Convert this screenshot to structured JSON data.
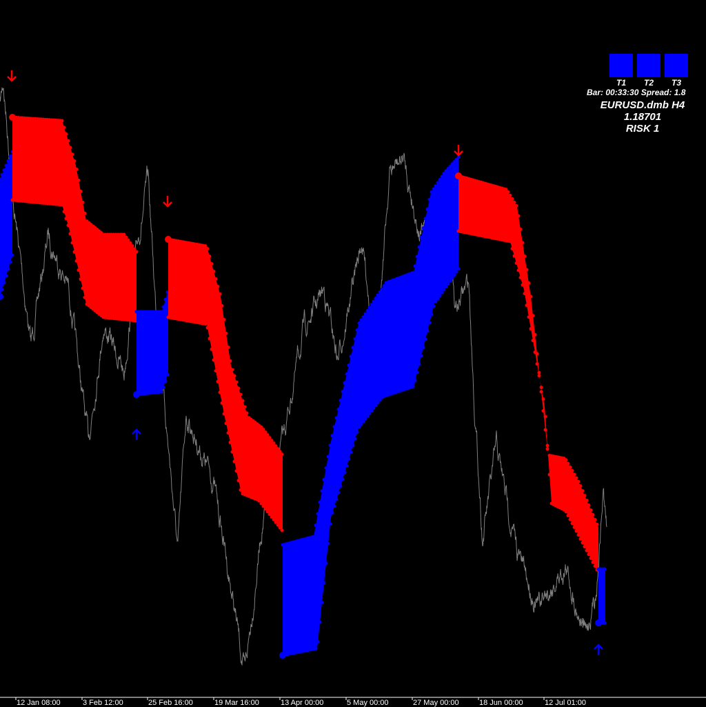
{
  "chart_data": {
    "type": "line",
    "title": "",
    "xlabel": "",
    "ylabel": "",
    "symbol": "EURUSD.dmb",
    "timeframe": "H4",
    "x_ticks": [
      {
        "x": 23,
        "label": "12 Jan 08:00"
      },
      {
        "x": 119,
        "label": "3 Feb 12:00"
      },
      {
        "x": 214,
        "label": "25 Feb 16:00"
      },
      {
        "x": 310,
        "label": "19 Mar 16:00"
      },
      {
        "x": 406,
        "label": "13 Apr 00:00"
      },
      {
        "x": 502,
        "label": "5 May 00:00"
      },
      {
        "x": 598,
        "label": "27 May 00:00"
      },
      {
        "x": 694,
        "label": "18 Jun 00:00"
      },
      {
        "x": 789,
        "label": "12 Jul 01:00"
      }
    ],
    "price_path": [
      [
        0,
        85
      ],
      [
        5,
        88
      ],
      [
        20,
        70
      ],
      [
        45,
        50
      ],
      [
        70,
        66
      ],
      [
        100,
        58
      ],
      [
        128,
        36
      ],
      [
        150,
        53
      ],
      [
        180,
        46
      ],
      [
        200,
        65
      ],
      [
        215,
        74
      ],
      [
        225,
        57
      ],
      [
        258,
        20
      ],
      [
        270,
        40
      ],
      [
        310,
        30
      ],
      [
        330,
        18
      ],
      [
        355,
        2
      ],
      [
        380,
        24
      ],
      [
        410,
        36
      ],
      [
        440,
        52
      ],
      [
        470,
        58
      ],
      [
        490,
        48
      ],
      [
        525,
        65
      ],
      [
        545,
        50
      ],
      [
        565,
        75
      ],
      [
        585,
        77
      ],
      [
        610,
        66
      ],
      [
        640,
        70
      ],
      [
        650,
        71
      ],
      [
        660,
        55
      ],
      [
        680,
        59
      ],
      [
        688,
        42
      ],
      [
        700,
        22
      ],
      [
        720,
        35
      ],
      [
        750,
        20
      ],
      [
        780,
        12
      ],
      [
        820,
        18
      ],
      [
        850,
        8
      ],
      [
        865,
        15
      ],
      [
        875,
        29
      ],
      [
        880,
        23
      ]
    ],
    "bands": [
      {
        "trend": "up",
        "top": [
          [
            0,
            74
          ],
          [
            18,
            78
          ]
        ],
        "bottom": [
          [
            0,
            57
          ],
          [
            18,
            63
          ]
        ]
      },
      {
        "trend": "down",
        "top": [
          [
            18,
            83
          ],
          [
            90,
            82.5
          ],
          [
            110,
            76
          ],
          [
            125,
            68
          ],
          [
            150,
            66
          ],
          [
            180,
            66
          ],
          [
            198,
            63.5
          ]
        ],
        "bottom": [
          [
            18,
            71
          ],
          [
            90,
            70.3
          ],
          [
            100,
            67
          ],
          [
            125,
            56
          ],
          [
            150,
            54
          ],
          [
            198,
            53.5
          ]
        ]
      },
      {
        "trend": "up",
        "top": [
          [
            198,
            54.8
          ],
          [
            235,
            54.8
          ],
          [
            244,
            58
          ]
        ],
        "bottom": [
          [
            198,
            42.8
          ],
          [
            235,
            43.2
          ],
          [
            244,
            46
          ]
        ]
      },
      {
        "trend": "down",
        "top": [
          [
            244,
            65.3
          ],
          [
            300,
            64.3
          ],
          [
            320,
            57
          ],
          [
            335,
            47
          ],
          [
            360,
            39.5
          ],
          [
            380,
            38
          ],
          [
            410,
            34
          ]
        ],
        "bottom": [
          [
            244,
            54
          ],
          [
            300,
            53
          ],
          [
            325,
            40
          ],
          [
            350,
            28.5
          ],
          [
            375,
            27.5
          ],
          [
            410,
            23
          ]
        ]
      },
      {
        "trend": "up",
        "top": [
          [
            410,
            21
          ],
          [
            455,
            22.2
          ],
          [
            480,
            36
          ],
          [
            520,
            53
          ],
          [
            560,
            59
          ],
          [
            600,
            60.5
          ],
          [
            625,
            72
          ],
          [
            645,
            75
          ],
          [
            665,
            77.2
          ]
        ],
        "bottom": [
          [
            410,
            5
          ],
          [
            460,
            6
          ],
          [
            480,
            25
          ],
          [
            520,
            38
          ],
          [
            555,
            42.5
          ],
          [
            600,
            44
          ],
          [
            630,
            56
          ],
          [
            665,
            61
          ]
        ]
      },
      {
        "trend": "down",
        "top": [
          [
            665,
            74.5
          ],
          [
            735,
            72.5
          ],
          [
            750,
            70
          ],
          [
            770,
            57
          ],
          [
            795,
            34
          ],
          [
            820,
            33.5
          ],
          [
            840,
            30
          ],
          [
            868,
            23.5
          ]
        ],
        "bottom": [
          [
            665,
            66.5
          ],
          [
            740,
            65
          ],
          [
            760,
            58
          ],
          [
            790,
            41
          ],
          [
            800,
            27
          ],
          [
            820,
            26
          ],
          [
            868,
            17
          ]
        ]
      },
      {
        "trend": "up",
        "top": [
          [
            868,
            17.5
          ],
          [
            878,
            17.5
          ]
        ],
        "bottom": [
          [
            868,
            9.7
          ],
          [
            878,
            9.7
          ]
        ]
      }
    ],
    "signals": [
      {
        "type": "sell",
        "x": 17,
        "level": 89
      },
      {
        "type": "sell",
        "x": 243,
        "level": 70.8
      },
      {
        "type": "sell",
        "x": 665,
        "level": 78.2
      },
      {
        "type": "buy",
        "x": 198,
        "level": 37
      },
      {
        "type": "buy",
        "x": 868,
        "level": 5.8
      }
    ],
    "colors": {
      "up": "#0000ff",
      "down": "#ff0000",
      "price": "#808080",
      "background": "#000000",
      "axis": "#ffffff"
    }
  },
  "panel": {
    "t1": "T1",
    "t2": "T2",
    "t3": "T3",
    "bar_info": "Bar: 00:33:30 Spread: 1.8",
    "symbol_line": "EURUSD.dmb H4",
    "price": "1.18701",
    "risk": "RISK 1"
  }
}
